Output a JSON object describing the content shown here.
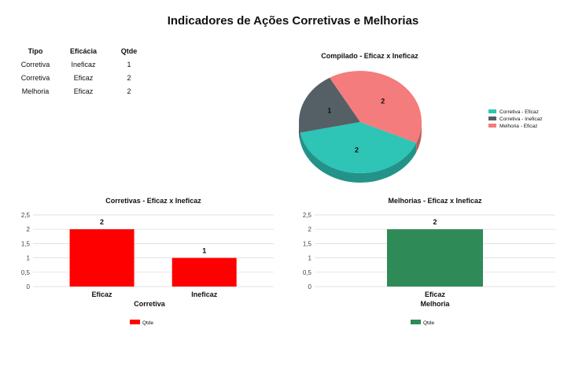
{
  "page": {
    "title": "Indicadores de Ações Corretivas e Melhorias"
  },
  "summary_table": {
    "headers": [
      "Tipo",
      "Eficácia",
      "Qtde"
    ],
    "rows": [
      [
        "Corretiva",
        "Ineficaz",
        "1"
      ],
      [
        "Corretiva",
        "Eficaz",
        "2"
      ],
      [
        "Melhoria",
        "Eficaz",
        "2"
      ]
    ]
  },
  "chart_data": [
    {
      "type": "pie",
      "title": "Compilado - Eficaz x Ineficaz",
      "labels": [
        "Corretiva - Eficaz",
        "Corretiva - Ineficaz",
        "Melhoria - Eficaz"
      ],
      "values": [
        2,
        1,
        2
      ],
      "colors": [
        "#2ec4b6",
        "#555f66",
        "#f47c7c"
      ],
      "legend": "right",
      "style": "3d"
    },
    {
      "type": "bar",
      "title": "Corretivas - Eficaz x Ineficaz",
      "categories": [
        "Eficaz",
        "Ineficaz"
      ],
      "series": [
        {
          "name": "Qtde",
          "values": [
            2,
            1
          ],
          "color": "#ff0000"
        }
      ],
      "xlabel": "Corretiva",
      "ylabel": "",
      "ylim": [
        0,
        2.5
      ],
      "yticks": [
        "0",
        "0,5",
        "1",
        "1,5",
        "2",
        "2,5"
      ],
      "grid": true,
      "legend": "bottom"
    },
    {
      "type": "bar",
      "title": "Melhorias - Eficaz x Ineficaz",
      "categories": [
        "Eficaz"
      ],
      "series": [
        {
          "name": "Qtde",
          "values": [
            2
          ],
          "color": "#2e8b57"
        }
      ],
      "xlabel": "Melhoria",
      "ylabel": "",
      "ylim": [
        0,
        2.5
      ],
      "yticks": [
        "0",
        "0,5",
        "1",
        "1,5",
        "2",
        "2,5"
      ],
      "grid": true,
      "legend": "bottom"
    }
  ]
}
